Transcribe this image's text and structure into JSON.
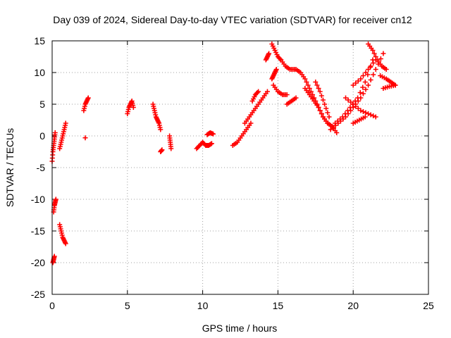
{
  "chart_data": {
    "type": "scatter",
    "title": "Day 039 of 2024, Sidereal Day-to-day VTEC variation (SDTVAR) for receiver cn12",
    "xlabel": "GPS time / hours",
    "ylabel": "SDTVAR / TECUs",
    "xlim": [
      0,
      25
    ],
    "ylim": [
      -25,
      15
    ],
    "xticks": [
      0,
      5,
      10,
      15,
      20,
      25
    ],
    "yticks": [
      -25,
      -20,
      -15,
      -10,
      -5,
      0,
      5,
      10,
      15
    ],
    "grid": true,
    "marker": "plus",
    "color": "#ff0000",
    "segments": [
      {
        "x": [
          0.0,
          0.05,
          0.1,
          0.15,
          0.2
        ],
        "y": [
          -4,
          -2.5,
          -1.5,
          -0.5,
          0.5
        ]
      },
      {
        "x": [
          0.1,
          0.15,
          0.2,
          0.25
        ],
        "y": [
          -12,
          -11,
          -10.5,
          -10
        ]
      },
      {
        "x": [
          0.05,
          0.1,
          0.15
        ],
        "y": [
          -20,
          -19.5,
          -19
        ]
      },
      {
        "x": [
          0.5,
          0.6,
          0.7,
          0.8,
          0.9
        ],
        "y": [
          -2,
          -1,
          0,
          1,
          2
        ]
      },
      {
        "x": [
          0.5,
          0.6,
          0.7,
          0.8,
          0.9
        ],
        "y": [
          -14,
          -15,
          -16,
          -16.5,
          -17
        ]
      },
      {
        "x": [
          2.1,
          2.2,
          2.3,
          2.4
        ],
        "y": [
          4,
          5,
          5.5,
          6
        ]
      },
      {
        "x": [
          2.2
        ],
        "y": [
          -0.3
        ]
      },
      {
        "x": [
          5.0,
          5.1,
          5.2,
          5.3,
          5.4
        ],
        "y": [
          3.5,
          4.5,
          5,
          5.5,
          4.5
        ]
      },
      {
        "x": [
          6.7,
          6.8,
          6.9,
          7.0,
          7.1,
          7.2
        ],
        "y": [
          5,
          4,
          3,
          2.5,
          2,
          1
        ]
      },
      {
        "x": [
          7.2,
          7.3
        ],
        "y": [
          -2.5,
          -2.2
        ]
      },
      {
        "x": [
          7.8,
          7.85,
          7.9
        ],
        "y": [
          0,
          -1,
          -2
        ]
      },
      {
        "x": [
          9.6,
          9.8,
          10.0,
          10.2,
          10.4,
          10.6
        ],
        "y": [
          -2,
          -1.5,
          -1,
          -1.5,
          -1.5,
          -1.2
        ]
      },
      {
        "x": [
          10.3,
          10.5,
          10.7
        ],
        "y": [
          0.2,
          0.5,
          0.3
        ]
      },
      {
        "x": [
          12.0,
          12.3,
          12.6,
          12.9,
          13.2
        ],
        "y": [
          -1.5,
          -1,
          0,
          1,
          2
        ]
      },
      {
        "x": [
          12.8,
          13.1,
          13.4,
          13.7,
          14.0,
          14.3
        ],
        "y": [
          2,
          3,
          4,
          5,
          6,
          7
        ]
      },
      {
        "x": [
          13.3,
          13.5,
          13.7
        ],
        "y": [
          5.5,
          6.5,
          7
        ]
      },
      {
        "x": [
          14.2,
          14.3,
          14.4
        ],
        "y": [
          12,
          12.5,
          13
        ]
      },
      {
        "x": [
          14.6,
          14.7,
          14.8,
          14.9
        ],
        "y": [
          9,
          9.5,
          10,
          10.5
        ]
      },
      {
        "x": [
          14.6,
          14.8,
          15.0,
          15.2
        ],
        "y": [
          14.5,
          13.5,
          12.5,
          12
        ]
      },
      {
        "x": [
          14.7,
          15.0,
          15.3,
          15.6
        ],
        "y": [
          8,
          7,
          6.5,
          6.5
        ]
      },
      {
        "x": [
          15.2,
          15.5,
          15.8,
          16.1
        ],
        "y": [
          12,
          11,
          10.5,
          10.5
        ]
      },
      {
        "x": [
          15.6,
          15.9,
          16.2
        ],
        "y": [
          5,
          5.5,
          6
        ]
      },
      {
        "x": [
          16.2,
          16.5,
          16.8,
          17.1,
          17.4,
          17.7,
          18.0,
          18.3,
          18.6,
          18.9
        ],
        "y": [
          10.5,
          10,
          9,
          7.5,
          6,
          4.5,
          3,
          2,
          1.5,
          0.5
        ]
      },
      {
        "x": [
          16.8,
          17.1,
          17.4,
          17.7,
          18.0,
          18.3
        ],
        "y": [
          7.5,
          6.5,
          5.5,
          4.5,
          3,
          2
        ]
      },
      {
        "x": [
          17.5,
          17.8,
          18.1,
          18.4
        ],
        "y": [
          8.5,
          7,
          5,
          3
        ]
      },
      {
        "x": [
          18.5,
          19.0,
          19.5,
          20.0,
          20.5,
          21.0,
          21.5,
          22.0
        ],
        "y": [
          1,
          2,
          3,
          4.5,
          6,
          8,
          10.5,
          13
        ]
      },
      {
        "x": [
          18.8,
          19.3,
          19.8,
          20.3,
          20.8,
          21.3
        ],
        "y": [
          2,
          3,
          4.5,
          6,
          8.5,
          12
        ]
      },
      {
        "x": [
          19.5,
          20.0,
          20.5,
          21.0,
          21.5
        ],
        "y": [
          6,
          5,
          4,
          3.5,
          3
        ]
      },
      {
        "x": [
          20.0,
          20.5,
          21.0,
          21.5
        ],
        "y": [
          8,
          9,
          10.5,
          12
        ]
      },
      {
        "x": [
          21.0,
          21.3,
          21.6,
          21.9,
          22.2
        ],
        "y": [
          14.5,
          13.5,
          12,
          11,
          10.5
        ]
      },
      {
        "x": [
          21.8,
          22.2,
          22.5,
          22.8
        ],
        "y": [
          9.5,
          9,
          8.5,
          8
        ]
      },
      {
        "x": [
          22.0,
          22.4,
          22.8
        ],
        "y": [
          7.5,
          7.8,
          8
        ]
      },
      {
        "x": [
          20.0,
          20.4,
          20.8
        ],
        "y": [
          2,
          2.5,
          3
        ]
      }
    ]
  }
}
